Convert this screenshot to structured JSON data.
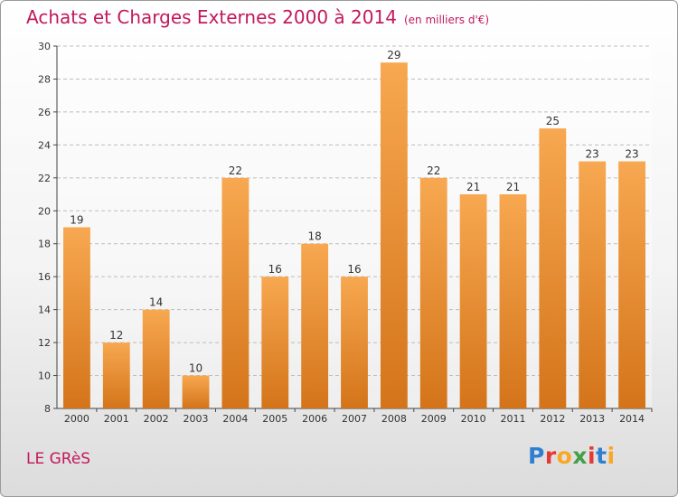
{
  "title": "Achats et Charges Externes 2000 à 2014",
  "subtitle": "(en milliers d'€)",
  "place": "LE GRèS",
  "logo": {
    "letters": [
      "P",
      "r",
      "o",
      "x",
      "i",
      "t",
      "i"
    ],
    "colors": [
      "#2e7fd1",
      "#e53935",
      "#f9a825",
      "#43a047",
      "#e53935",
      "#2e7fd1",
      "#f9a825"
    ]
  },
  "colors": {
    "bar_top": "#f7a850",
    "bar_bottom": "#d4741a",
    "accent": "#c2185b"
  },
  "chart_data": {
    "type": "bar",
    "categories": [
      "2000",
      "2001",
      "2002",
      "2003",
      "2004",
      "2005",
      "2006",
      "2007",
      "2008",
      "2009",
      "2010",
      "2011",
      "2012",
      "2013",
      "2014"
    ],
    "values": [
      19,
      12,
      14,
      10,
      22,
      16,
      18,
      16,
      29,
      22,
      21,
      21,
      25,
      23,
      23
    ],
    "ylim": [
      8,
      30
    ],
    "yticks": [
      8,
      10,
      12,
      14,
      16,
      18,
      20,
      22,
      24,
      26,
      28,
      30
    ],
    "grid": true,
    "title": "Achats et Charges Externes 2000 à 2014"
  }
}
